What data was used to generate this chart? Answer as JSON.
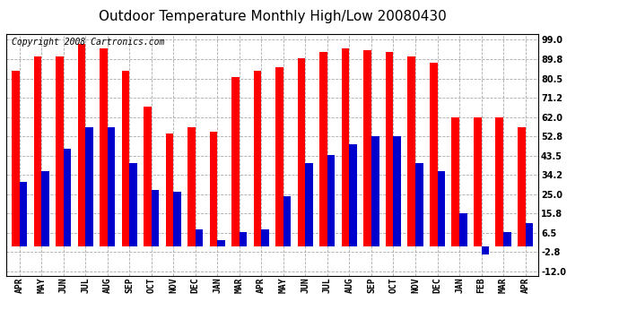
{
  "title": "Outdoor Temperature Monthly High/Low 20080430",
  "copyright": "Copyright 2008 Cartronics.com",
  "months": [
    "APR",
    "MAY",
    "JUN",
    "JUL",
    "AUG",
    "SEP",
    "OCT",
    "NOV",
    "DEC",
    "JAN",
    "MAR",
    "APR",
    "MAY",
    "JUN",
    "JUL",
    "AUG",
    "SEP",
    "OCT",
    "NOV",
    "DEC",
    "JAN",
    "FEB",
    "MAR",
    "APR"
  ],
  "highs": [
    84,
    91,
    91,
    97,
    95,
    84,
    67,
    54,
    57,
    55,
    81,
    84,
    86,
    90,
    93,
    95,
    94,
    93,
    91,
    88,
    62,
    62,
    62,
    57
  ],
  "lows": [
    31,
    36,
    47,
    57,
    57,
    40,
    27,
    26,
    8,
    3,
    7,
    8,
    24,
    40,
    44,
    49,
    53,
    53,
    40,
    36,
    16,
    -4,
    7,
    11
  ],
  "yticks": [
    99.0,
    89.8,
    80.5,
    71.2,
    62.0,
    52.8,
    43.5,
    34.2,
    25.0,
    15.8,
    6.5,
    -2.8,
    -12.0
  ],
  "ylim": [
    -14,
    102
  ],
  "bar_color_high": "#ff0000",
  "bar_color_low": "#0000cc",
  "background_color": "#ffffff",
  "grid_color": "#aaaaaa",
  "title_fontsize": 11,
  "copyright_fontsize": 7,
  "tick_fontsize": 7
}
